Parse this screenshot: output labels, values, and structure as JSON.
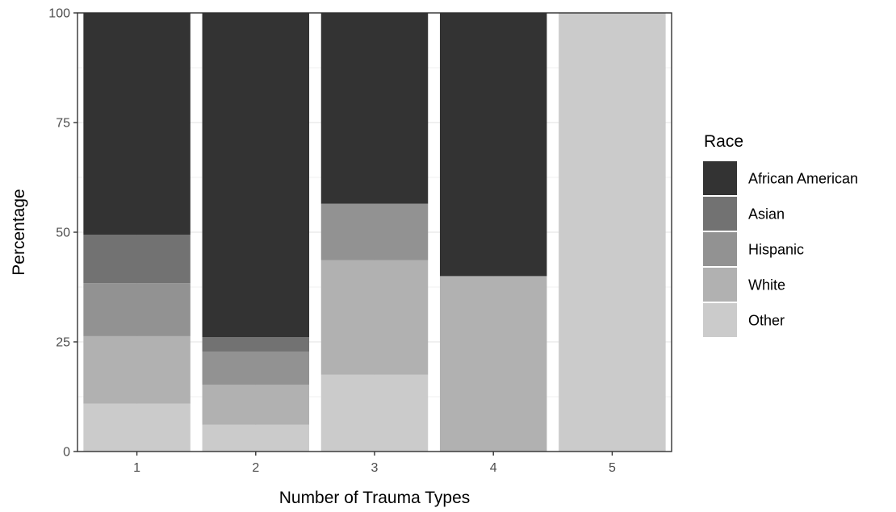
{
  "chart_data": {
    "type": "bar",
    "stacked": true,
    "title": "",
    "xlabel": "Number of Trauma Types",
    "ylabel": "Percentage",
    "ylim": [
      0,
      100
    ],
    "yticks": [
      0,
      25,
      50,
      75,
      100
    ],
    "grid": true,
    "legend_position": "right",
    "legend_title": "Race",
    "categories": [
      "1",
      "2",
      "3",
      "4",
      "5"
    ],
    "series": [
      {
        "name": "African American",
        "color": "#333333",
        "values": [
          50.6,
          73.9,
          43.5,
          60.0,
          0
        ]
      },
      {
        "name": "Asian",
        "color": "#727272",
        "values": [
          11.0,
          3.3,
          0,
          0,
          0
        ]
      },
      {
        "name": "Hispanic",
        "color": "#929292",
        "values": [
          12.1,
          7.6,
          12.9,
          0,
          0
        ]
      },
      {
        "name": "White",
        "color": "#b1b1b1",
        "values": [
          15.4,
          9.1,
          26.1,
          40.0,
          0
        ]
      },
      {
        "name": "Other",
        "color": "#cbcbcb",
        "values": [
          10.9,
          6.1,
          17.5,
          0,
          100
        ]
      }
    ]
  }
}
